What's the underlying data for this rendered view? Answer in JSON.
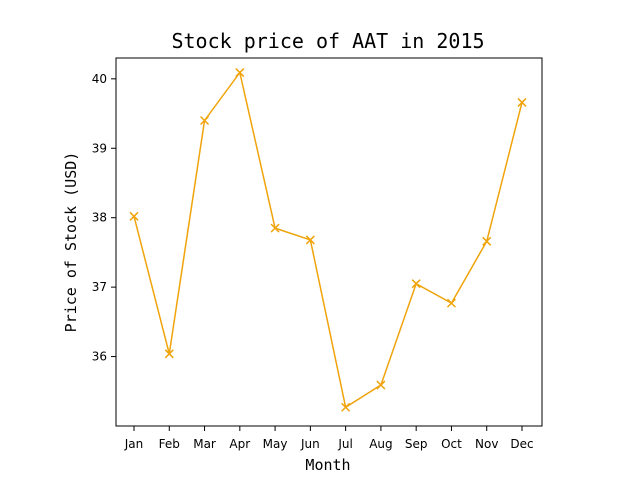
{
  "chart_data": {
    "type": "line",
    "title": "Stock price of AAT in 2015",
    "xlabel": "Month",
    "ylabel": "Price of Stock (USD)",
    "categories": [
      "Jan",
      "Feb",
      "Mar",
      "Apr",
      "May",
      "Jun",
      "Jul",
      "Aug",
      "Sep",
      "Oct",
      "Nov",
      "Dec"
    ],
    "series": [
      {
        "values": [
          38.02,
          36.04,
          39.4,
          40.09,
          37.85,
          37.68,
          35.27,
          35.59,
          37.05,
          36.77,
          37.66,
          39.66
        ],
        "color": "#f0a30a",
        "marker": "x"
      }
    ],
    "yticks": [
      36,
      37,
      38,
      39,
      40
    ],
    "ylim": [
      35.0,
      40.3
    ],
    "grid": false,
    "legend": "none"
  }
}
